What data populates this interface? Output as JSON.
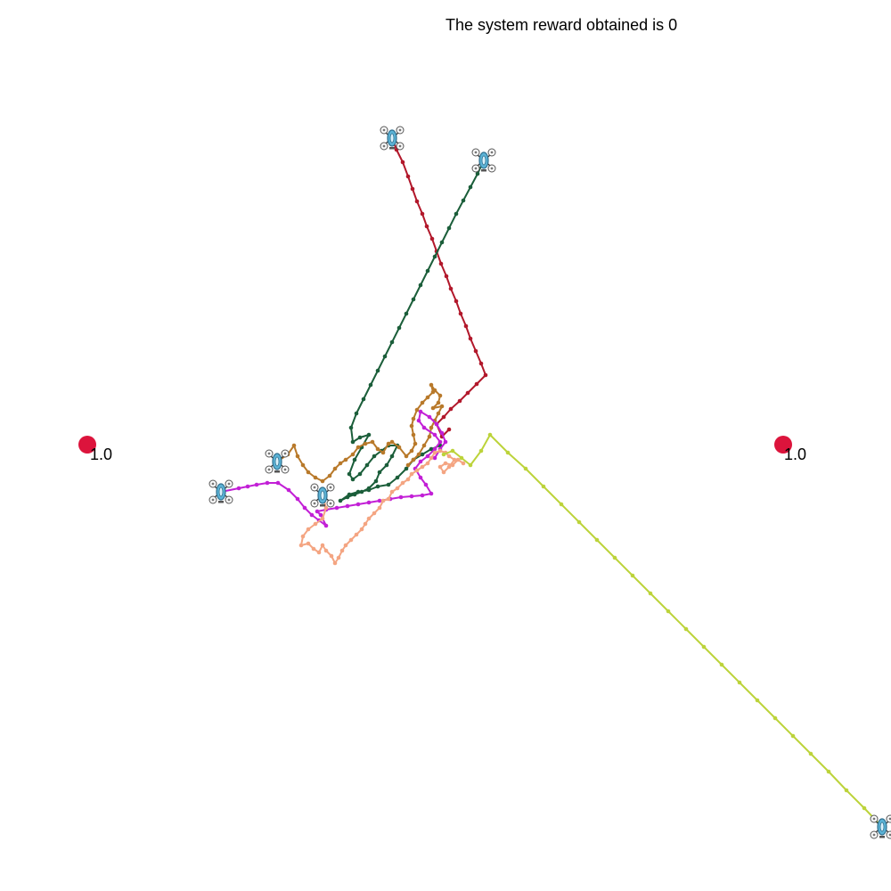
{
  "title": "The system reward obtained is 0",
  "targets": [
    {
      "id": "target-left",
      "label": "1.0",
      "color": "#dc143c"
    },
    {
      "id": "target-right",
      "label": "1.0",
      "color": "#dc143c"
    }
  ],
  "drones": [
    {
      "id": "drone-red",
      "trail_color": "#b2182b"
    },
    {
      "id": "drone-green",
      "trail_color": "#1b5e3a"
    },
    {
      "id": "drone-orange",
      "trail_color": "#b8792a"
    },
    {
      "id": "drone-magenta",
      "trail_color": "#c21fd6"
    },
    {
      "id": "drone-salmon",
      "trail_color": "#f4a582"
    },
    {
      "id": "drone-yellow",
      "trail_color": "#bcd33a"
    }
  ],
  "icons": {
    "drone": "quadcopter-drone-icon",
    "target": "target-dot-icon"
  }
}
